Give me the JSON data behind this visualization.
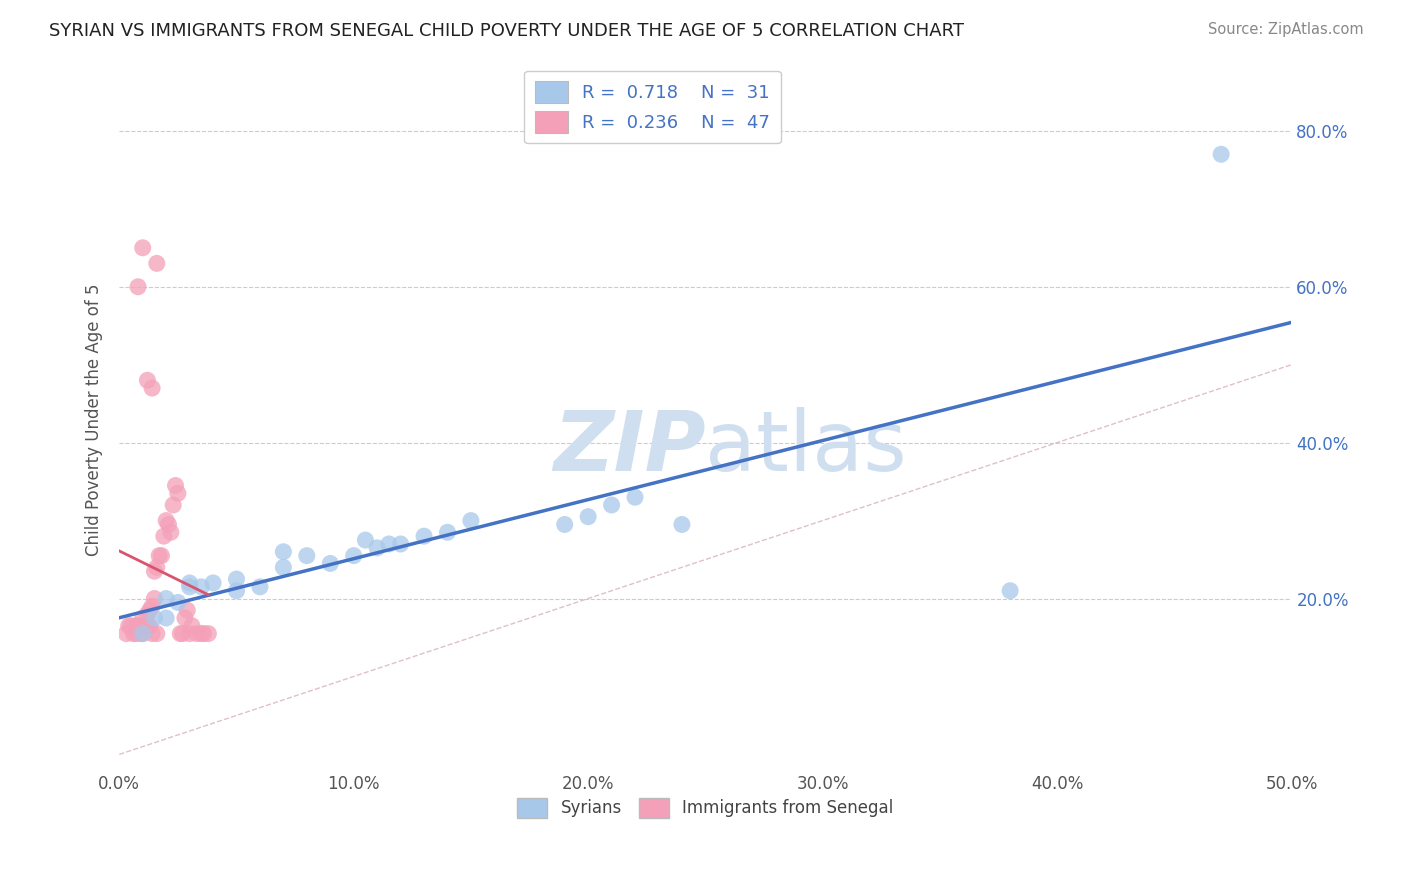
{
  "title": "SYRIAN VS IMMIGRANTS FROM SENEGAL CHILD POVERTY UNDER THE AGE OF 5 CORRELATION CHART",
  "source": "Source: ZipAtlas.com",
  "ylabel": "Child Poverty Under the Age of 5",
  "legend_labels": [
    "Syrians",
    "Immigrants from Senegal"
  ],
  "r_syrian": 0.718,
  "n_syrian": 31,
  "r_senegal": 0.236,
  "n_senegal": 47,
  "xlim": [
    0.0,
    0.5
  ],
  "ylim": [
    -0.02,
    0.88
  ],
  "xtick_vals": [
    0.0,
    0.1,
    0.2,
    0.3,
    0.4,
    0.5
  ],
  "xtick_labels": [
    "0.0%",
    "10.0%",
    "20.0%",
    "30.0%",
    "40.0%",
    "50.0%"
  ],
  "ytick_vals": [
    0.2,
    0.4,
    0.6,
    0.8
  ],
  "ytick_labels": [
    "20.0%",
    "40.0%",
    "60.0%",
    "80.0%"
  ],
  "color_syrian": "#a8c8ea",
  "color_senegal": "#f4a0b8",
  "line_color_syrian": "#4472c4",
  "line_color_senegal": "#d9546e",
  "diagonal_color": "#e0c0c8",
  "watermark_text": "ZIPatlas",
  "watermark_color": "#d0dff0",
  "background_color": "#ffffff",
  "syrian_x": [
    0.01,
    0.015,
    0.02,
    0.02,
    0.025,
    0.03,
    0.03,
    0.035,
    0.04,
    0.05,
    0.05,
    0.06,
    0.07,
    0.07,
    0.08,
    0.09,
    0.1,
    0.105,
    0.11,
    0.115,
    0.12,
    0.13,
    0.14,
    0.15,
    0.19,
    0.2,
    0.21,
    0.22,
    0.24,
    0.38,
    0.47
  ],
  "syrian_y": [
    0.155,
    0.175,
    0.175,
    0.2,
    0.195,
    0.215,
    0.22,
    0.215,
    0.22,
    0.21,
    0.225,
    0.215,
    0.24,
    0.26,
    0.255,
    0.245,
    0.255,
    0.275,
    0.265,
    0.27,
    0.27,
    0.28,
    0.285,
    0.3,
    0.295,
    0.305,
    0.32,
    0.33,
    0.295,
    0.21,
    0.77
  ],
  "senegal_x": [
    0.003,
    0.004,
    0.005,
    0.006,
    0.007,
    0.007,
    0.008,
    0.009,
    0.009,
    0.01,
    0.01,
    0.01,
    0.011,
    0.012,
    0.012,
    0.013,
    0.013,
    0.014,
    0.015,
    0.015,
    0.016,
    0.017,
    0.018,
    0.019,
    0.02,
    0.021,
    0.022,
    0.023,
    0.024,
    0.025,
    0.026,
    0.027,
    0.028,
    0.029,
    0.03,
    0.031,
    0.033,
    0.035,
    0.036,
    0.038,
    0.014,
    0.016,
    0.008,
    0.01,
    0.012,
    0.014,
    0.016
  ],
  "senegal_y": [
    0.155,
    0.165,
    0.165,
    0.155,
    0.155,
    0.165,
    0.165,
    0.155,
    0.165,
    0.155,
    0.165,
    0.175,
    0.165,
    0.165,
    0.18,
    0.165,
    0.185,
    0.19,
    0.2,
    0.235,
    0.24,
    0.255,
    0.255,
    0.28,
    0.3,
    0.295,
    0.285,
    0.32,
    0.345,
    0.335,
    0.155,
    0.155,
    0.175,
    0.185,
    0.155,
    0.165,
    0.155,
    0.155,
    0.155,
    0.155,
    0.47,
    0.63,
    0.6,
    0.65,
    0.48,
    0.155,
    0.155
  ]
}
